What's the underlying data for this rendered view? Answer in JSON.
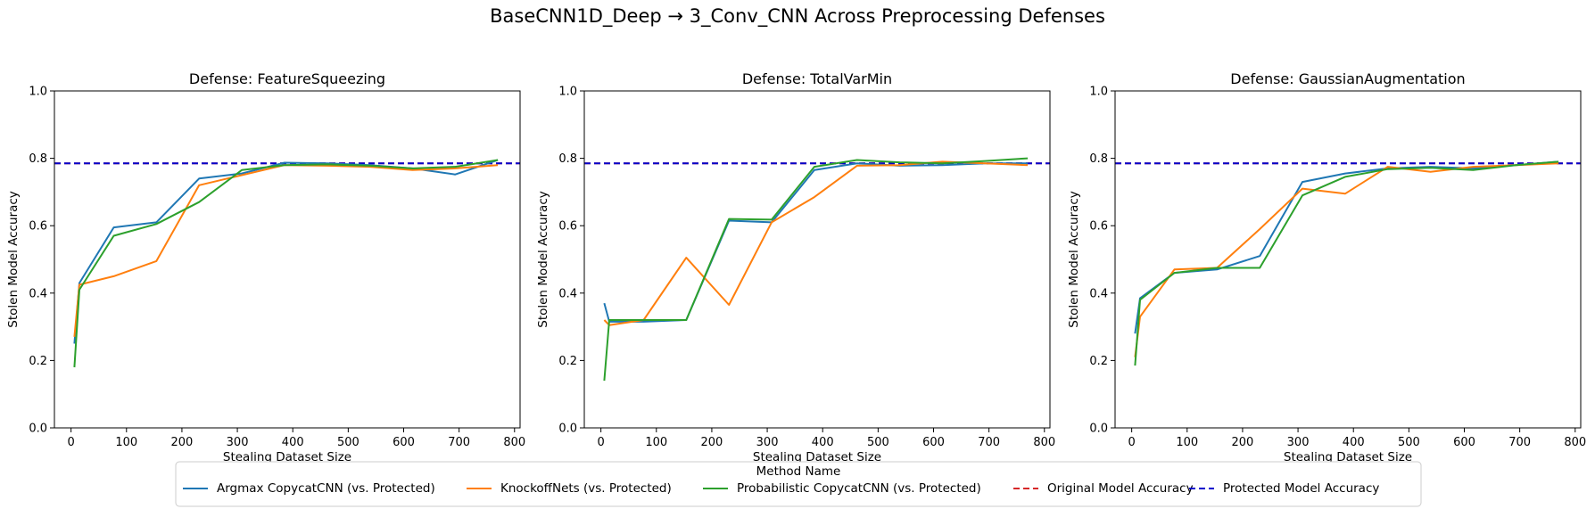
{
  "figure": {
    "suptitle": "BaseCNN1D_Deep → 3_Conv_CNN Across Preprocessing Defenses"
  },
  "colors": {
    "argmax": "#1f77b4",
    "knockoff": "#ff7f0e",
    "probabilistic": "#2ca02c",
    "original": "#d62728",
    "protected": "#0000cc"
  },
  "legend": {
    "title": "Method Name",
    "entries": [
      {
        "label": "Argmax CopycatCNN (vs. Protected)",
        "color": "#1f77b4",
        "style": "solid"
      },
      {
        "label": "KnockoffNets (vs. Protected)",
        "color": "#ff7f0e",
        "style": "solid"
      },
      {
        "label": "Probabilistic CopycatCNN (vs. Protected)",
        "color": "#2ca02c",
        "style": "solid"
      },
      {
        "label": "Original Model Accuracy",
        "color": "#d62728",
        "style": "dashed"
      },
      {
        "label": "Protected Model Accuracy",
        "color": "#0000cc",
        "style": "dashed"
      }
    ]
  },
  "chart_data": [
    {
      "type": "line",
      "title": "Defense: FeatureSqueezing",
      "xlabel": "Stealing Dataset Size",
      "ylabel": "Stolen Model Accuracy",
      "xlim": [
        -30,
        810
      ],
      "ylim": [
        0,
        1
      ],
      "xticks": [
        0,
        100,
        200,
        300,
        400,
        500,
        600,
        700,
        800
      ],
      "yticks": [
        0.0,
        0.2,
        0.4,
        0.6,
        0.8,
        1.0
      ],
      "x": [
        6,
        15,
        77,
        154,
        231,
        308,
        385,
        462,
        539,
        616,
        693,
        770
      ],
      "hlines": [
        {
          "name": "Original Model Accuracy",
          "y": 0.785
        },
        {
          "name": "Protected Model Accuracy",
          "y": 0.785
        }
      ],
      "series": [
        {
          "name": "Argmax CopycatCNN (vs. Protected)",
          "values": [
            0.25,
            0.43,
            0.595,
            0.61,
            0.74,
            0.755,
            0.787,
            0.785,
            0.78,
            0.77,
            0.752,
            0.795
          ]
        },
        {
          "name": "KnockoffNets (vs. Protected)",
          "values": [
            0.27,
            0.425,
            0.45,
            0.495,
            0.72,
            0.75,
            0.78,
            0.778,
            0.775,
            0.765,
            0.77,
            0.78
          ]
        },
        {
          "name": "Probabilistic CopycatCNN (vs. Protected)",
          "values": [
            0.18,
            0.41,
            0.57,
            0.605,
            0.67,
            0.765,
            0.78,
            0.782,
            0.778,
            0.77,
            0.775,
            0.795
          ]
        }
      ]
    },
    {
      "type": "line",
      "title": "Defense: TotalVarMin",
      "xlabel": "Stealing Dataset Size",
      "ylabel": "Stolen Model Accuracy",
      "xlim": [
        -30,
        810
      ],
      "ylim": [
        0,
        1
      ],
      "xticks": [
        0,
        100,
        200,
        300,
        400,
        500,
        600,
        700,
        800
      ],
      "yticks": [
        0.0,
        0.2,
        0.4,
        0.6,
        0.8,
        1.0
      ],
      "x": [
        6,
        15,
        77,
        154,
        231,
        308,
        385,
        462,
        539,
        616,
        693,
        770
      ],
      "hlines": [
        {
          "name": "Original Model Accuracy",
          "y": 0.785
        },
        {
          "name": "Protected Model Accuracy",
          "y": 0.785
        }
      ],
      "series": [
        {
          "name": "Argmax CopycatCNN (vs. Protected)",
          "values": [
            0.37,
            0.315,
            0.315,
            0.32,
            0.615,
            0.61,
            0.765,
            0.785,
            0.778,
            0.78,
            0.785,
            0.785
          ]
        },
        {
          "name": "KnockoffNets (vs. Protected)",
          "values": [
            0.32,
            0.305,
            0.32,
            0.505,
            0.365,
            0.61,
            0.685,
            0.778,
            0.78,
            0.79,
            0.785,
            0.78
          ]
        },
        {
          "name": "Probabilistic CopycatCNN (vs. Protected)",
          "values": [
            0.14,
            0.32,
            0.32,
            0.32,
            0.62,
            0.618,
            0.775,
            0.795,
            0.788,
            0.785,
            0.792,
            0.8
          ]
        }
      ]
    },
    {
      "type": "line",
      "title": "Defense: GaussianAugmentation",
      "xlabel": "Stealing Dataset Size",
      "ylabel": "Stolen Model Accuracy",
      "xlim": [
        -30,
        810
      ],
      "ylim": [
        0,
        1
      ],
      "xticks": [
        0,
        100,
        200,
        300,
        400,
        500,
        600,
        700,
        800
      ],
      "yticks": [
        0.0,
        0.2,
        0.4,
        0.6,
        0.8,
        1.0
      ],
      "x": [
        6,
        15,
        77,
        154,
        231,
        308,
        385,
        462,
        539,
        616,
        693,
        770
      ],
      "hlines": [
        {
          "name": "Original Model Accuracy",
          "y": 0.785
        },
        {
          "name": "Protected Model Accuracy",
          "y": 0.785
        }
      ],
      "series": [
        {
          "name": "Argmax CopycatCNN (vs. Protected)",
          "values": [
            0.28,
            0.385,
            0.46,
            0.47,
            0.51,
            0.73,
            0.755,
            0.77,
            0.775,
            0.77,
            0.78,
            0.79
          ]
        },
        {
          "name": "KnockoffNets (vs. Protected)",
          "values": [
            0.21,
            0.33,
            0.47,
            0.475,
            0.59,
            0.71,
            0.695,
            0.775,
            0.76,
            0.775,
            0.78,
            0.785
          ]
        },
        {
          "name": "Probabilistic CopycatCNN (vs. Protected)",
          "values": [
            0.185,
            0.38,
            0.46,
            0.475,
            0.475,
            0.69,
            0.745,
            0.768,
            0.772,
            0.765,
            0.78,
            0.79
          ]
        }
      ]
    }
  ]
}
